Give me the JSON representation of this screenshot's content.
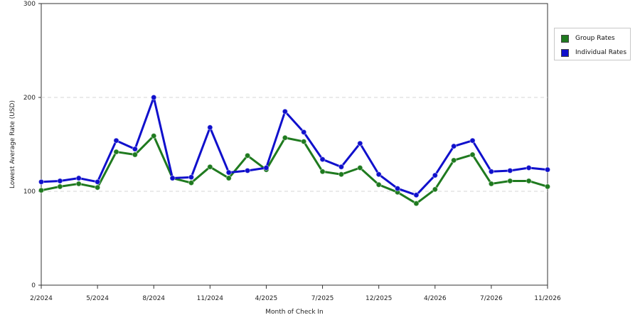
{
  "colors": {
    "group": "#1f7a1f",
    "individual": "#1010cc"
  },
  "legend": {
    "group_label": "Group Rates",
    "individual_label": "Individual Rates"
  },
  "chart_data": {
    "type": "line",
    "xlabel": "Month of Check In",
    "ylabel": "Lowest Average Rate (USD)",
    "ylim": [
      0,
      300
    ],
    "yticks": [
      0,
      100,
      200,
      300
    ],
    "xticks": [
      "2/2024",
      "5/2024",
      "8/2024",
      "11/2024",
      "4/2025",
      "7/2025",
      "12/2025",
      "4/2026",
      "7/2026",
      "11/2026"
    ],
    "grid": "horizontal dashed",
    "legend_position": "right",
    "series": [
      {
        "name": "Group Rates",
        "values": [
          101,
          105,
          108,
          104,
          142,
          139,
          159,
          114,
          109,
          126,
          114,
          138,
          123,
          157,
          153,
          121,
          118,
          125,
          107,
          99,
          87,
          102,
          133,
          139,
          108,
          111,
          111,
          105
        ]
      },
      {
        "name": "Individual Rates",
        "values": [
          110,
          111,
          114,
          110,
          154,
          145,
          200,
          114,
          115,
          168,
          120,
          122,
          125,
          185,
          163,
          134,
          126,
          151,
          118,
          103,
          96,
          117,
          148,
          154,
          121,
          122,
          125,
          123
        ]
      }
    ]
  }
}
